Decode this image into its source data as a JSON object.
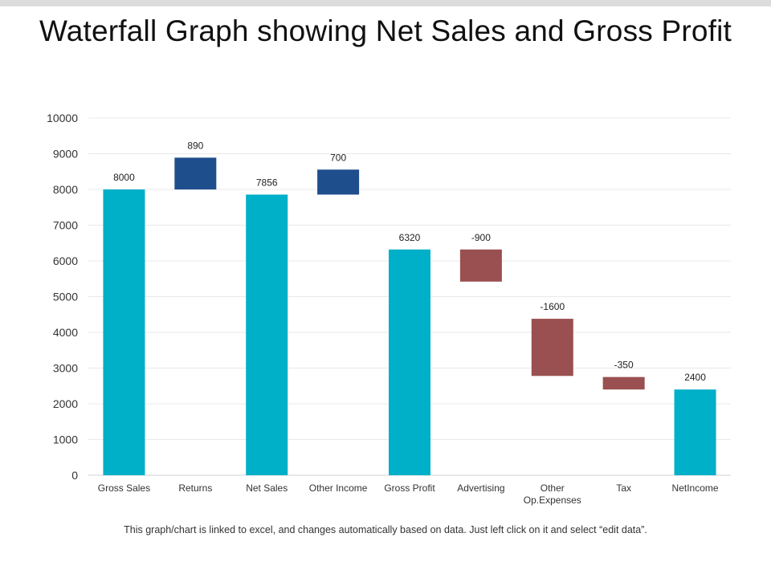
{
  "title": "Waterfall Graph showing Net Sales and Gross Profit",
  "footnote": "This graph/chart is linked to excel, and changes automatically based on data. Just left click on it and select “edit data”.",
  "colors": {
    "total": "#00AFC8",
    "increase": "#1F4E8C",
    "decrease": "#9A5050",
    "grid": "#e9e9e9",
    "axis": "#d0d0d0",
    "text": "#333333"
  },
  "chart_data": {
    "type": "bar",
    "subtype": "waterfall",
    "title": "Waterfall Graph showing Net Sales and Gross Profit",
    "xlabel": "",
    "ylabel": "",
    "ylim": [
      0,
      10000
    ],
    "yticks": [
      0,
      1000,
      2000,
      3000,
      4000,
      5000,
      6000,
      7000,
      8000,
      9000,
      10000
    ],
    "grid": true,
    "categories": [
      [
        "Gross Sales"
      ],
      [
        "Returns"
      ],
      [
        "Net Sales"
      ],
      [
        "Other Income"
      ],
      [
        "Gross Profit"
      ],
      [
        "Advertising"
      ],
      [
        "Other",
        "Op.Expenses"
      ],
      [
        "Tax"
      ],
      [
        "NetIncome"
      ]
    ],
    "bars": [
      {
        "kind": "total",
        "base": 0,
        "top": 8000,
        "label": "8000"
      },
      {
        "kind": "increase",
        "base": 8000,
        "top": 8890,
        "label": "890"
      },
      {
        "kind": "total",
        "base": 0,
        "top": 7856,
        "label": "7856"
      },
      {
        "kind": "increase",
        "base": 7856,
        "top": 8556,
        "label": "700"
      },
      {
        "kind": "total",
        "base": 0,
        "top": 6320,
        "label": "6320"
      },
      {
        "kind": "decrease",
        "base": 5420,
        "top": 6320,
        "label": "-900"
      },
      {
        "kind": "decrease",
        "base": 2780,
        "top": 4380,
        "label": "-1600"
      },
      {
        "kind": "decrease",
        "base": 2400,
        "top": 2750,
        "label": "-350"
      },
      {
        "kind": "total",
        "base": 0,
        "top": 2400,
        "label": "2400"
      }
    ]
  }
}
